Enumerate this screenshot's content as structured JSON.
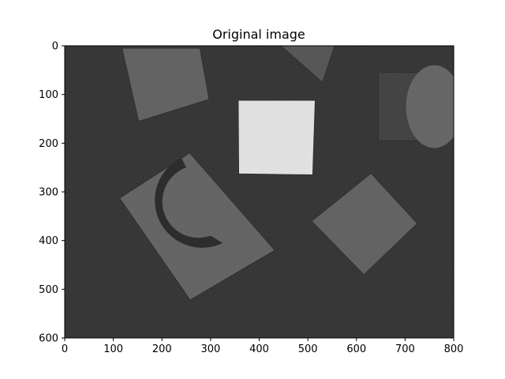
{
  "chart_data": {
    "type": "image",
    "title": "Original image",
    "colormap": "gray",
    "x_ticks": [
      0,
      100,
      200,
      300,
      400,
      500,
      600,
      700,
      800
    ],
    "y_ticks": [
      0,
      100,
      200,
      300,
      400,
      500,
      600
    ],
    "xlim": [
      0,
      800
    ],
    "ylim": [
      600,
      0
    ],
    "image_width": 800,
    "image_height": 600,
    "scene": {
      "background": "#2a2a2a",
      "objects": [
        {
          "name": "block-top-left",
          "points": [
            [
              118,
              5
            ],
            [
              278,
              5
            ],
            [
              297,
              110
            ],
            [
              152,
              155
            ]
          ],
          "fill": "#5a5a5a"
        },
        {
          "name": "block-top-center",
          "points": [
            [
              445,
              0
            ],
            [
              555,
              0
            ],
            [
              530,
              75
            ]
          ],
          "fill": "#4d4d4d"
        },
        {
          "name": "bright-square",
          "points": [
            [
              357,
              112
            ],
            [
              515,
              112
            ],
            [
              510,
              265
            ],
            [
              358,
              263
            ]
          ],
          "fill": "#e4e4e4"
        },
        {
          "name": "right-square",
          "points": [
            [
              630,
              262
            ],
            [
              725,
              365
            ],
            [
              615,
              470
            ],
            [
              508,
              360
            ]
          ],
          "fill": "#5a5a5a"
        },
        {
          "name": "cut-block",
          "points": [
            [
              257,
              220
            ],
            [
              432,
              420
            ],
            [
              258,
              522
            ],
            [
              113,
              313
            ]
          ],
          "fill": "#5c5c5c"
        },
        {
          "name": "cylinder-side",
          "points": [
            [
              645,
              55
            ],
            [
              760,
              55
            ],
            [
              760,
              195
            ],
            [
              645,
              195
            ]
          ],
          "fill": "#383838"
        },
        {
          "name": "cylinder-top",
          "ellipse": [
            760,
            125,
            58,
            85
          ],
          "fill": "#5e5e5e"
        }
      ]
    }
  }
}
